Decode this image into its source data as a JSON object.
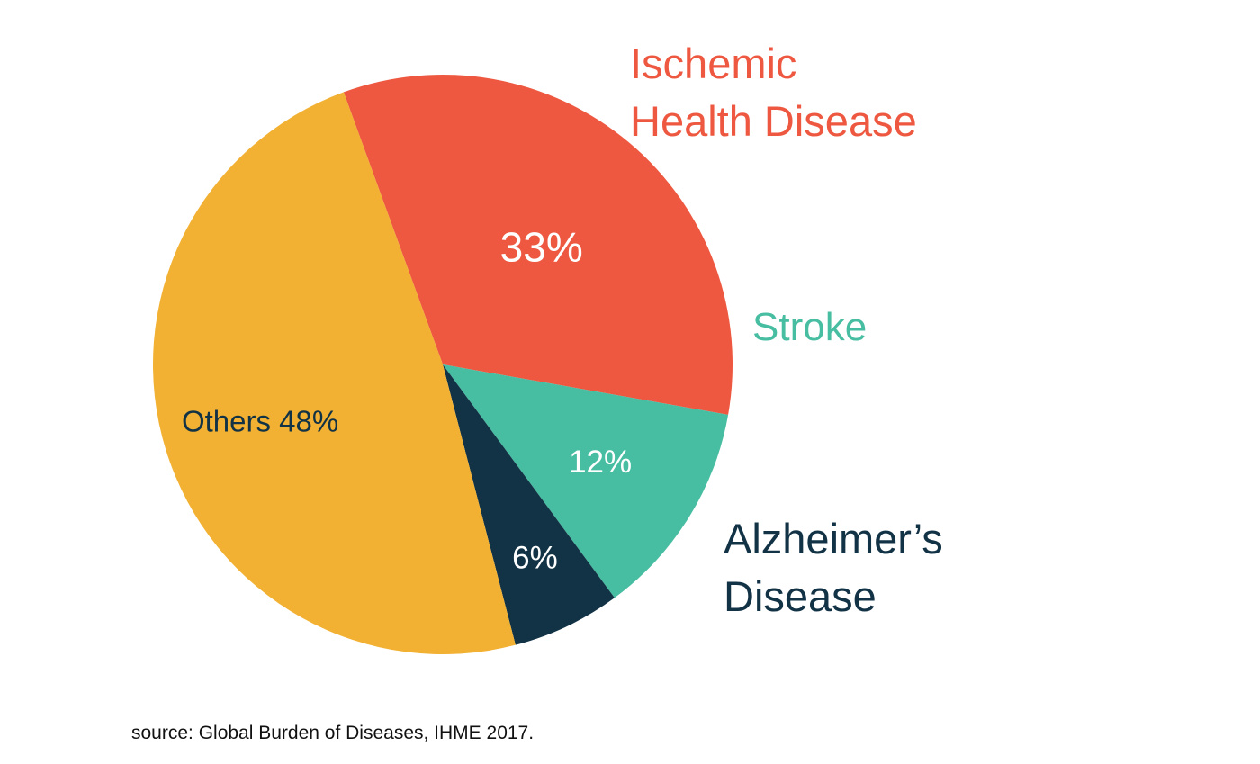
{
  "chart_data": {
    "type": "pie",
    "slices": [
      {
        "category_lines": [
          "Ischemic",
          "Health Disease"
        ],
        "value": 33,
        "value_label": "33%",
        "color": "#EE5840",
        "label_color": "#EE5840",
        "value_text_color": "#ffffff"
      },
      {
        "category_lines": [
          "Stroke"
        ],
        "value": 12,
        "value_label": "12%",
        "color": "#47BDA1",
        "label_color": "#47BDA1",
        "value_text_color": "#ffffff"
      },
      {
        "category_lines": [
          "Alzheimer’s",
          "Disease"
        ],
        "value": 6,
        "value_label": "6%",
        "color": "#123245",
        "label_color": "#123245",
        "value_text_color": "#ffffff"
      },
      {
        "category_lines": [],
        "value": 48,
        "value_label": "Others 48%",
        "color": "#F2B132",
        "label_color": "#123245",
        "value_text_color": "#123245"
      }
    ]
  },
  "source": "source: Global Burden of Diseases, IHME 2017."
}
